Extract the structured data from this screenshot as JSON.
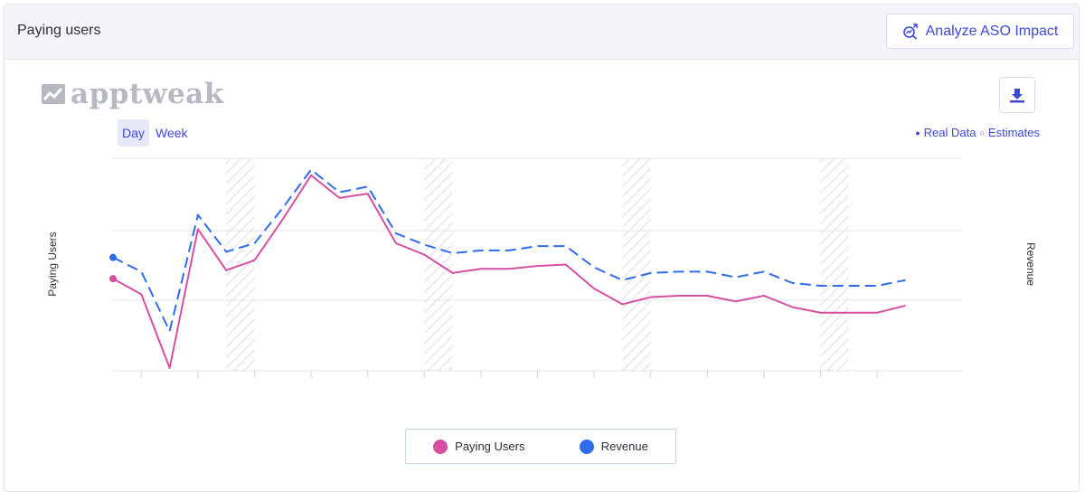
{
  "header": {
    "title": "Paying users",
    "analyze_label": "Analyze ASO Impact"
  },
  "logo": {
    "text": "apptweak"
  },
  "tabs": [
    {
      "label": "Day",
      "active": true
    },
    {
      "label": "Week",
      "active": false
    }
  ],
  "data_legend": {
    "real": "Real Data",
    "estimates": "Estimates",
    "real_marker": "●",
    "estimates_marker": "○"
  },
  "colors": {
    "paying_users": "#d64fa1",
    "revenue": "#2f6bea",
    "accent": "#3d49d9",
    "hatch": "#d9d9d9"
  },
  "chart_data": {
    "type": "line",
    "xlabel": "",
    "ylabel": "Paying Users",
    "y2label": "Revenue",
    "grid": true,
    "legend_position": "bottom",
    "x": [
      0,
      1,
      2,
      3,
      4,
      5,
      6,
      7,
      8,
      9,
      10,
      11,
      12,
      13,
      14,
      15,
      16,
      17,
      18,
      19,
      20,
      21,
      22,
      23,
      24,
      25,
      26,
      27,
      28,
      29
    ],
    "weekend_bands": [
      [
        4,
        5
      ],
      [
        11,
        12
      ],
      [
        18,
        19
      ],
      [
        25,
        26
      ]
    ],
    "series": [
      {
        "name": "Paying Users",
        "style": "solid",
        "axis": "left",
        "values": [
          65,
          54,
          2,
          100,
          71,
          78,
          107,
          138,
          122,
          125,
          90,
          82,
          69,
          72,
          72,
          74,
          75,
          58,
          47,
          52,
          53,
          53,
          49,
          53,
          45,
          41,
          41,
          41,
          46,
          46
        ]
      },
      {
        "name": "Revenue",
        "style": "dashed",
        "axis": "right",
        "values": [
          80,
          70,
          28,
          110,
          84,
          90,
          115,
          142,
          126,
          130,
          97,
          89,
          83,
          85,
          85,
          88,
          88,
          73,
          64,
          69,
          70,
          70,
          66,
          70,
          62,
          60,
          60,
          60,
          64,
          64
        ]
      }
    ],
    "visible_points": 29,
    "ylim": [
      0,
      150
    ]
  }
}
